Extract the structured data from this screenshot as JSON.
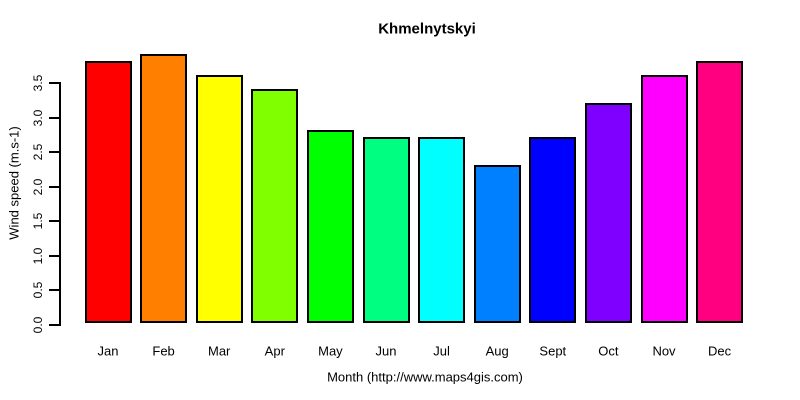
{
  "chart_data": {
    "type": "bar",
    "title": "Khmelnytskyi",
    "xlabel": "Month (http://www.maps4gis.com)",
    "ylabel": "Wind speed (m.s-1)",
    "categories": [
      "Jan",
      "Feb",
      "Mar",
      "Apr",
      "May",
      "Jun",
      "Jul",
      "Aug",
      "Sept",
      "Oct",
      "Nov",
      "Dec"
    ],
    "values": [
      3.8,
      3.9,
      3.6,
      3.4,
      2.8,
      2.7,
      2.7,
      2.3,
      2.7,
      3.2,
      3.6,
      3.8
    ],
    "bar_colors": [
      "#FF0000",
      "#FF8000",
      "#FFFF00",
      "#80FF00",
      "#00FF00",
      "#00FF80",
      "#00FFFF",
      "#0080FF",
      "#0000FF",
      "#8000FF",
      "#FF00FF",
      "#FF0080"
    ],
    "bar_border_color": "#000000",
    "ytick_labels": [
      "0.0",
      "0.5",
      "1.0",
      "1.5",
      "2.0",
      "2.5",
      "3.0",
      "3.5"
    ],
    "yticks": [
      0.0,
      0.5,
      1.0,
      1.5,
      2.0,
      2.5,
      3.0,
      3.5
    ],
    "ylim": [
      0,
      4.0
    ],
    "grid": false,
    "legend_position": "none",
    "axis_color": "#000000",
    "text_color": "#000000",
    "background_color": "#FFFFFF"
  }
}
